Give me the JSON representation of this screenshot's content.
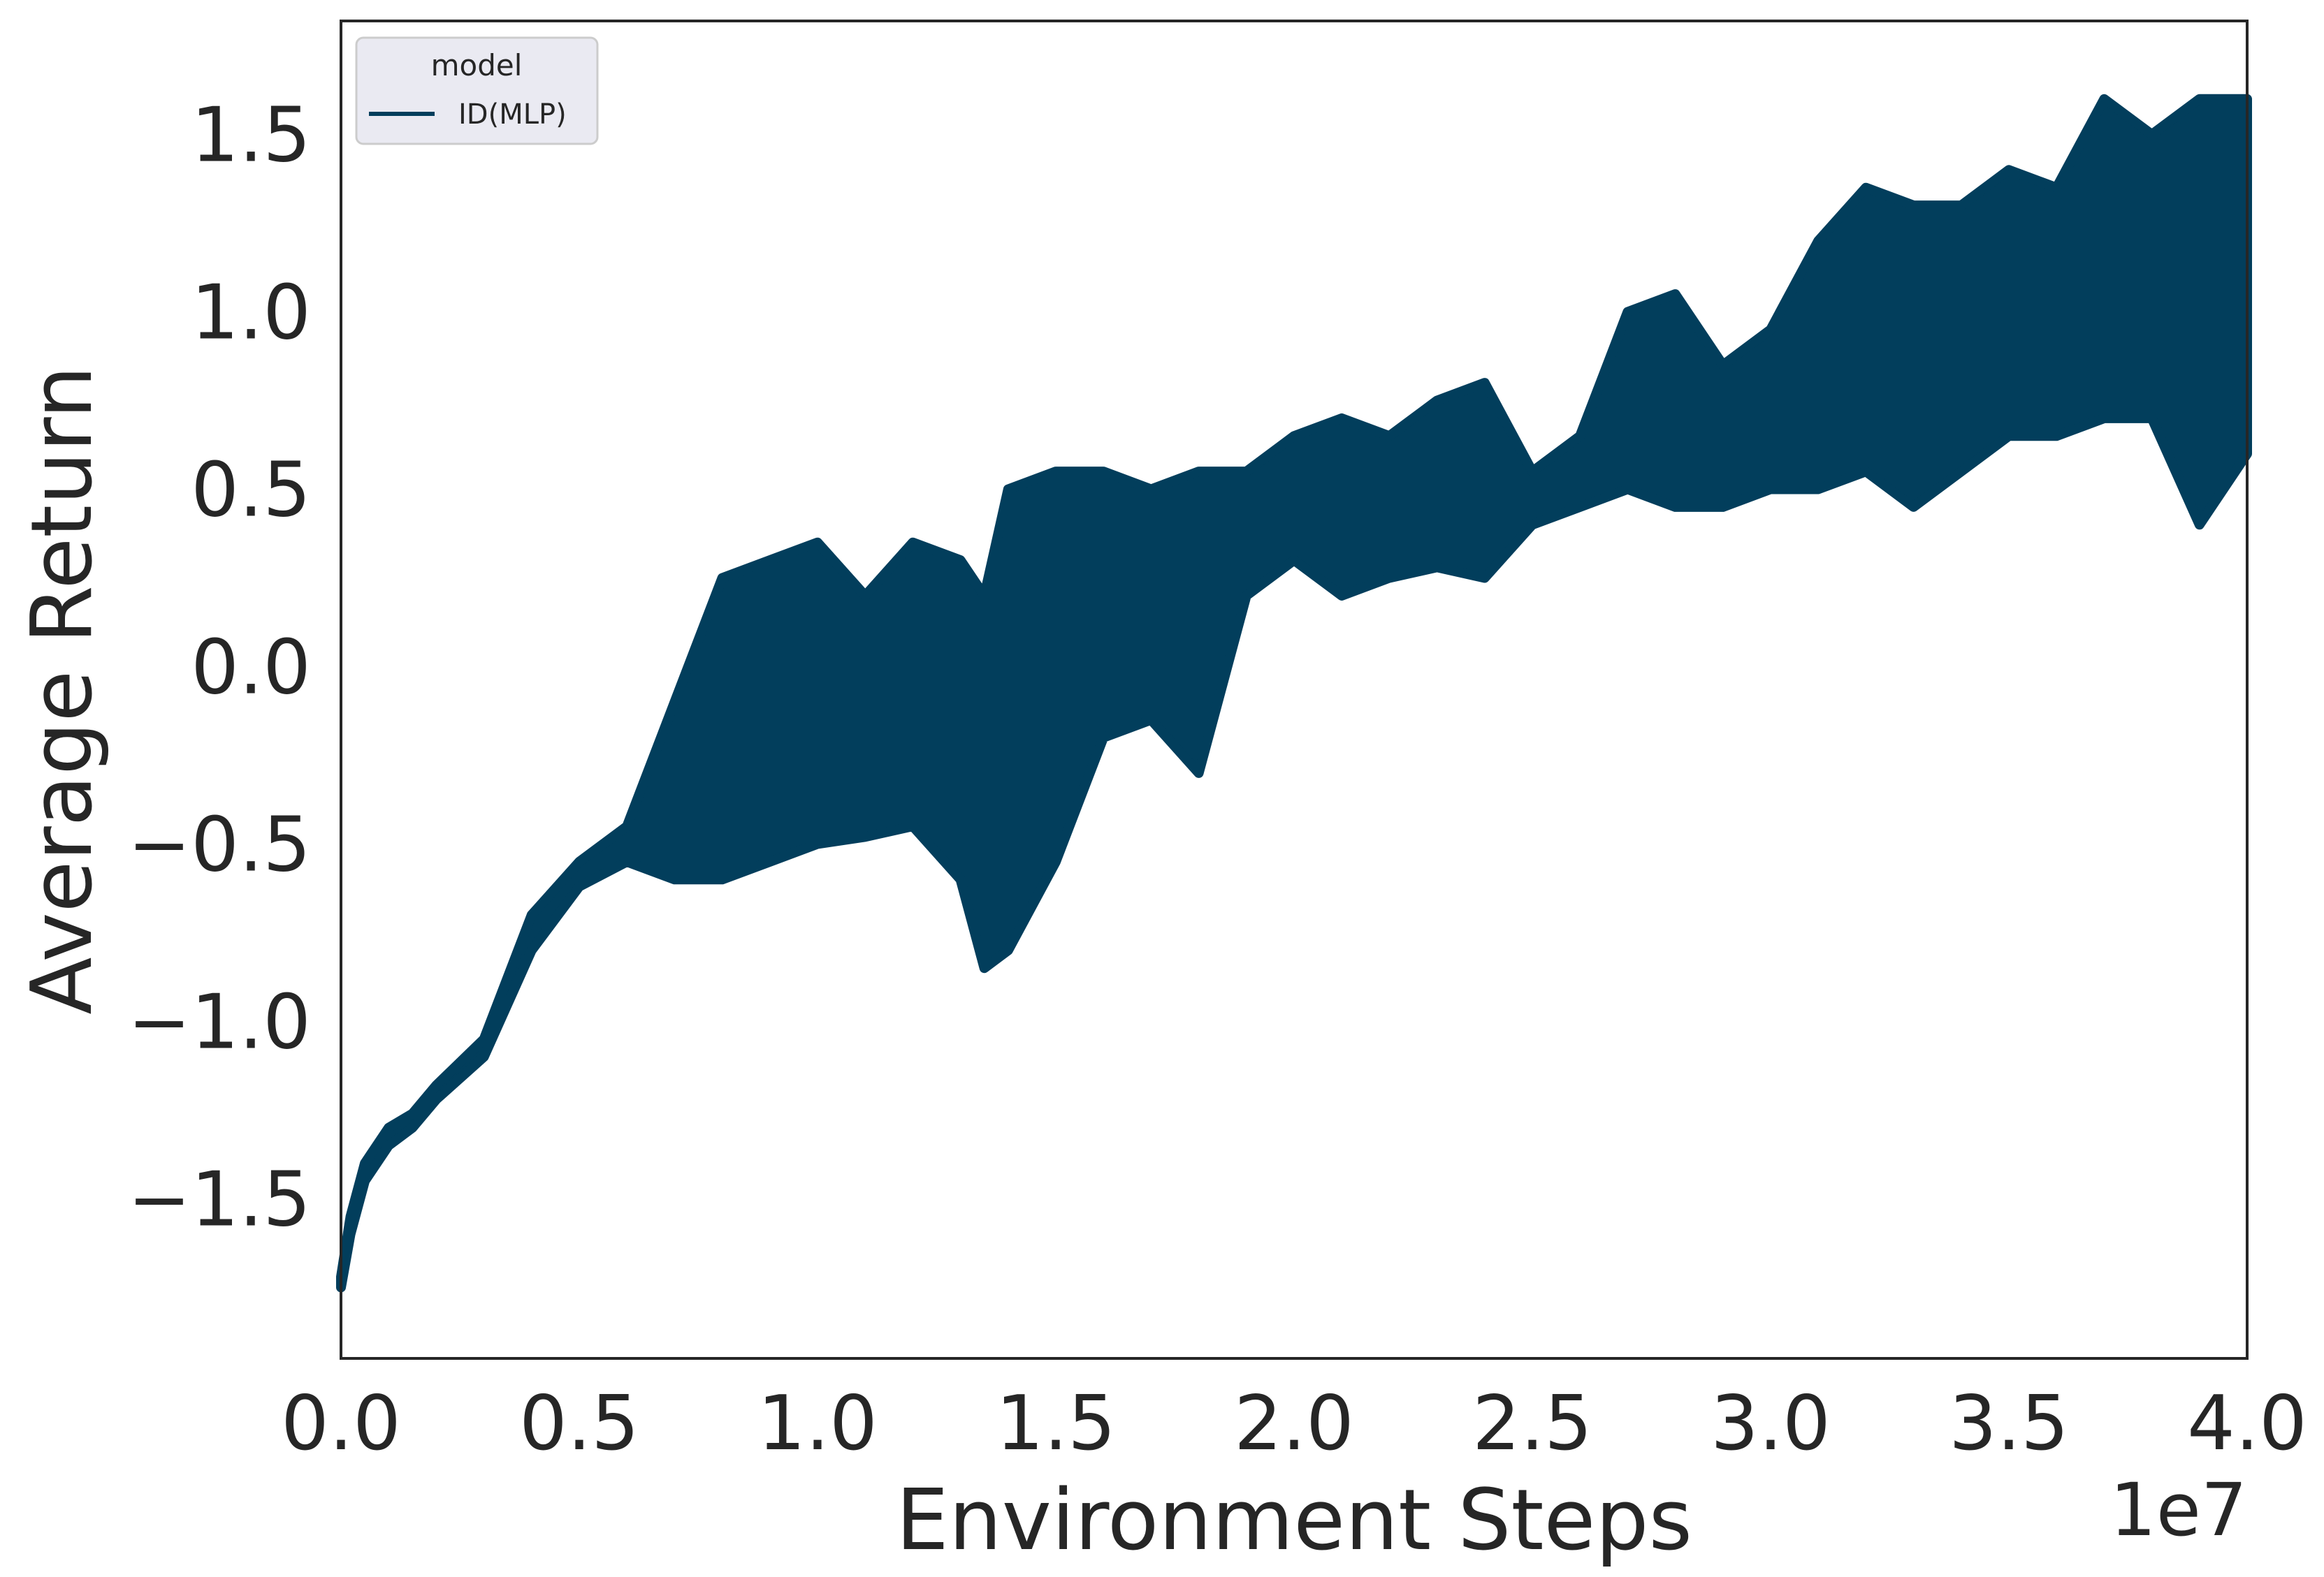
{
  "chart_data": {
    "type": "line",
    "title": "",
    "xlabel": "Environment Steps",
    "ylabel": "Average Return",
    "x_offset_label": "1e7",
    "xlim": [
      0,
      4.0
    ],
    "ylim": [
      -1.95,
      1.82
    ],
    "x_tick_values": [
      0.0,
      0.5,
      1.0,
      1.5,
      2.0,
      2.5,
      3.0,
      3.5,
      4.0
    ],
    "x_tick_labels": [
      "0.0",
      "0.5",
      "1.0",
      "1.5",
      "2.0",
      "2.5",
      "3.0",
      "3.5",
      "4.0"
    ],
    "y_tick_values": [
      -1.5,
      -1.0,
      -0.5,
      0.0,
      0.5,
      1.0,
      1.5
    ],
    "y_tick_labels": [
      "−1.5",
      "−1.0",
      "−0.5",
      "0.0",
      "0.5",
      "1.0",
      "1.5"
    ],
    "grid": false,
    "legend": {
      "title": "model",
      "position": "top-left",
      "entries": [
        "ID(MLP)"
      ]
    },
    "series": [
      {
        "name": "ID(MLP)",
        "color": "#023e5c",
        "x": [
          0.0,
          0.02,
          0.05,
          0.1,
          0.15,
          0.2,
          0.3,
          0.4,
          0.5,
          0.6,
          0.7,
          0.8,
          0.9,
          1.0,
          1.1,
          1.2,
          1.3,
          1.35,
          1.4,
          1.5,
          1.6,
          1.7,
          1.8,
          1.9,
          2.0,
          2.1,
          2.2,
          2.3,
          2.4,
          2.5,
          2.6,
          2.7,
          2.8,
          2.9,
          3.0,
          3.1,
          3.2,
          3.3,
          3.4,
          3.5,
          3.6,
          3.7,
          3.8,
          3.9,
          4.0
        ],
        "y_low": [
          -1.75,
          -1.6,
          -1.45,
          -1.35,
          -1.3,
          -1.22,
          -1.1,
          -0.8,
          -0.62,
          -0.55,
          -0.6,
          -0.6,
          -0.55,
          -0.5,
          -0.48,
          -0.45,
          -0.6,
          -0.85,
          -0.8,
          -0.55,
          -0.2,
          -0.15,
          -0.3,
          0.2,
          0.3,
          0.2,
          0.25,
          0.28,
          0.25,
          0.4,
          0.45,
          0.5,
          0.45,
          0.45,
          0.5,
          0.5,
          0.55,
          0.45,
          0.55,
          0.65,
          0.65,
          0.7,
          0.7,
          0.4,
          0.6
        ],
        "y_high": [
          -1.72,
          -1.55,
          -1.4,
          -1.3,
          -1.26,
          -1.18,
          -1.05,
          -0.7,
          -0.55,
          -0.45,
          -0.1,
          0.25,
          0.3,
          0.35,
          0.2,
          0.35,
          0.3,
          0.2,
          0.5,
          0.55,
          0.55,
          0.5,
          0.55,
          0.55,
          0.65,
          0.7,
          0.65,
          0.75,
          0.8,
          0.55,
          0.65,
          1.0,
          1.05,
          0.85,
          0.95,
          1.2,
          1.35,
          1.3,
          1.3,
          1.4,
          1.35,
          1.6,
          1.5,
          1.6,
          1.6
        ]
      }
    ]
  }
}
